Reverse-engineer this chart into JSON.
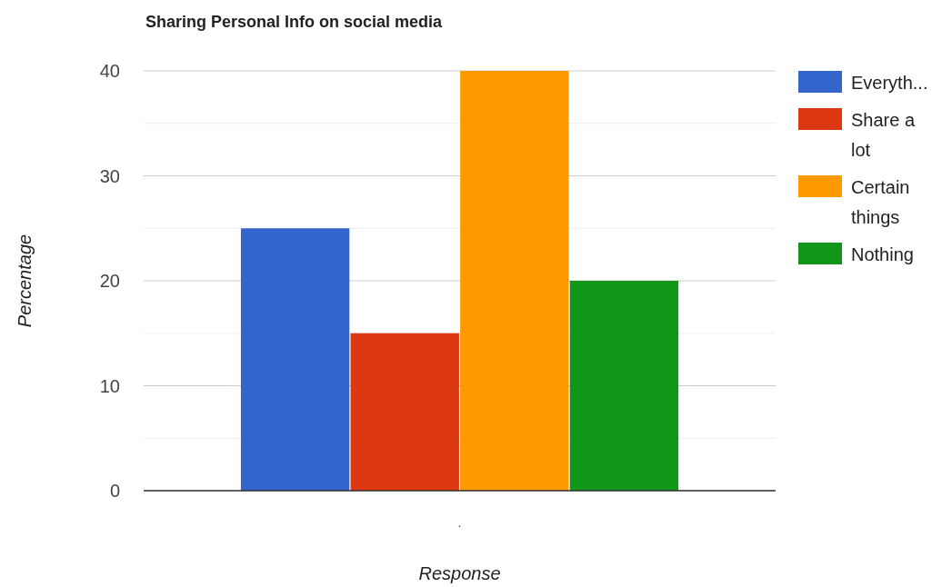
{
  "chart_data": {
    "type": "bar",
    "title": "Sharing Personal Info on social media",
    "xlabel": "Response",
    "ylabel": "Percentage",
    "categories": [
      "."
    ],
    "series": [
      {
        "name": "Everyth...",
        "color": "#3366cc",
        "values": [
          25
        ]
      },
      {
        "name": "Share a lot",
        "color": "#dc3912",
        "values": [
          15
        ]
      },
      {
        "name": "Certain things",
        "color": "#ff9900",
        "values": [
          40
        ]
      },
      {
        "name": "Nothing",
        "color": "#109618",
        "values": [
          20
        ]
      }
    ],
    "ylim": [
      0,
      40
    ],
    "yticks": [
      0,
      {
        "value": 5,
        "label": null
      },
      10,
      {
        "value": 15,
        "label": null
      },
      20,
      {
        "value": 25,
        "label": null
      },
      30,
      {
        "value": 35,
        "label": null
      },
      40
    ],
    "grid": true,
    "legend": "right"
  }
}
